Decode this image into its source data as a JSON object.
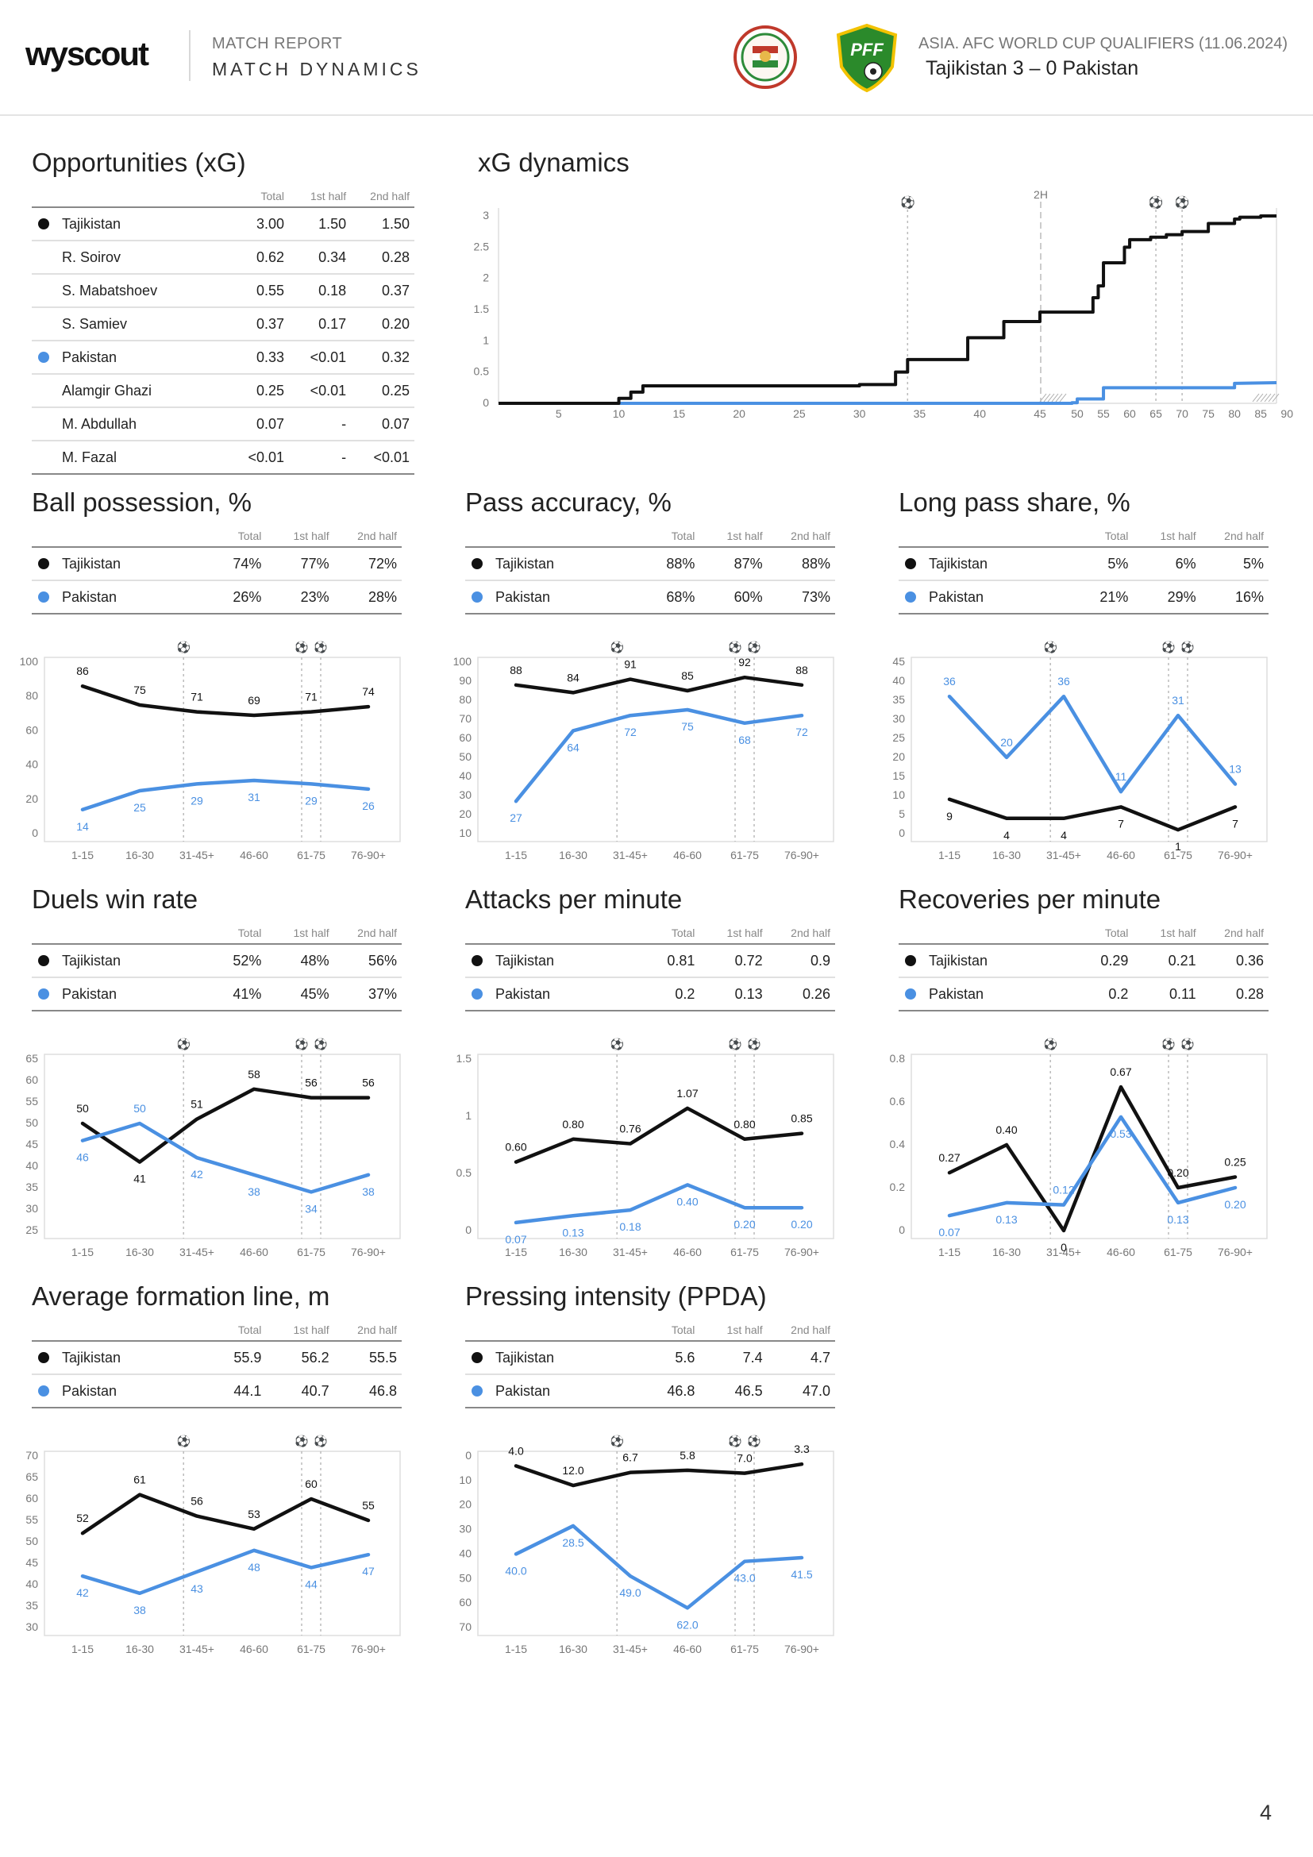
{
  "header": {
    "logo": "wyscout",
    "report_label": "MATCH REPORT",
    "report_title": "MATCH DYNAMICS",
    "competition": "ASIA. AFC WORLD CUP QUALIFIERS (11.06.2024)",
    "match": "Tajikistan 3 – 0 Pakistan",
    "crest_pff_text": "PFF"
  },
  "colors": {
    "home": "#111111",
    "away": "#4a90e2"
  },
  "columns": {
    "total": "Total",
    "first_half": "1st half",
    "second_half": "2nd half"
  },
  "opportunities": {
    "title": "Opportunities (xG)",
    "rows": [
      {
        "name": "Tajikistan",
        "team": "home",
        "total": "3.00",
        "h1": "1.50",
        "h2": "1.50"
      },
      {
        "name": "R. Soirov",
        "team": "",
        "total": "0.62",
        "h1": "0.34",
        "h2": "0.28"
      },
      {
        "name": "S. Mabatshoev",
        "team": "",
        "total": "0.55",
        "h1": "0.18",
        "h2": "0.37"
      },
      {
        "name": "S. Samiev",
        "team": "",
        "total": "0.37",
        "h1": "0.17",
        "h2": "0.20"
      },
      {
        "name": "Pakistan",
        "team": "away",
        "total": "0.33",
        "h1": "<0.01",
        "h2": "0.32"
      },
      {
        "name": "Alamgir Ghazi",
        "team": "",
        "total": "0.25",
        "h1": "<0.01",
        "h2": "0.25"
      },
      {
        "name": "M. Abdullah",
        "team": "",
        "total": "0.07",
        "h1": "-",
        "h2": "0.07"
      },
      {
        "name": "M. Fazal",
        "team": "",
        "total": "<0.01",
        "h1": "-",
        "h2": "<0.01"
      }
    ]
  },
  "xg_dynamics": {
    "title": "xG dynamics",
    "half_label": "2H",
    "goal_icon": "⚽",
    "goal_minutes": [
      34,
      65,
      70
    ],
    "y_ticks": [
      "0",
      "0.5",
      "1",
      "1.5",
      "2",
      "2.5",
      "3"
    ],
    "x_ticks_1h": [
      5,
      10,
      15,
      20,
      25,
      30,
      35,
      40,
      45
    ],
    "x_ticks_2h": [
      50,
      55,
      60,
      65,
      70,
      75,
      80,
      85,
      90
    ],
    "home_steps": [
      [
        0,
        0
      ],
      [
        10,
        0.08
      ],
      [
        11,
        0.18
      ],
      [
        12,
        0.28
      ],
      [
        30,
        0.3
      ],
      [
        33,
        0.5
      ],
      [
        34,
        0.7
      ],
      [
        39,
        1.05
      ],
      [
        42,
        1.31
      ],
      [
        45,
        1.46
      ],
      [
        53,
        1.69
      ],
      [
        54,
        1.88
      ],
      [
        55,
        2.25
      ],
      [
        59,
        2.5
      ],
      [
        60,
        2.62
      ],
      [
        64,
        2.66
      ],
      [
        67,
        2.7
      ],
      [
        70,
        2.75
      ],
      [
        75,
        2.88
      ],
      [
        80,
        2.95
      ],
      [
        81,
        2.98
      ],
      [
        85,
        3.0
      ]
    ],
    "away_steps": [
      [
        0,
        0
      ],
      [
        49,
        0.01
      ],
      [
        50,
        0.07
      ],
      [
        55,
        0.25
      ],
      [
        80,
        0.32
      ]
    ],
    "home_end": 3.0,
    "away_end": 0.33
  },
  "charts": [
    {
      "title": "Ball possession, %",
      "home": {
        "name": "Tajikistan",
        "total": "74%",
        "h1": "77%",
        "h2": "72%"
      },
      "away": {
        "name": "Pakistan",
        "total": "26%",
        "h1": "23%",
        "h2": "28%"
      },
      "chart_data": {
        "type": "line",
        "categories": [
          "1-15",
          "16-30",
          "31-45+",
          "46-60",
          "61-75",
          "76-90+"
        ],
        "ylim": [
          0,
          100
        ],
        "y_ticks": [
          0,
          20,
          40,
          60,
          80,
          100
        ],
        "inverted": false,
        "series": [
          {
            "name": "Tajikistan",
            "team": "home",
            "values": [
              86,
              75,
              71,
              69,
              71,
              74
            ],
            "labels": [
              "86",
              "75",
              "71",
              "69",
              "71",
              "74"
            ]
          },
          {
            "name": "Pakistan",
            "team": "away",
            "values": [
              14,
              25,
              29,
              31,
              29,
              26
            ],
            "labels": [
              "14",
              "25",
              "29",
              "31",
              "29",
              "26"
            ]
          }
        ]
      }
    },
    {
      "title": "Pass accuracy, %",
      "home": {
        "name": "Tajikistan",
        "total": "88%",
        "h1": "87%",
        "h2": "88%"
      },
      "away": {
        "name": "Pakistan",
        "total": "68%",
        "h1": "60%",
        "h2": "73%"
      },
      "chart_data": {
        "type": "line",
        "categories": [
          "1-15",
          "16-30",
          "31-45+",
          "46-60",
          "61-75",
          "76-90+"
        ],
        "ylim": [
          10,
          100
        ],
        "y_ticks": [
          10,
          20,
          30,
          40,
          50,
          60,
          70,
          80,
          90,
          100
        ],
        "inverted": false,
        "series": [
          {
            "name": "Tajikistan",
            "team": "home",
            "values": [
              88,
              84,
              91,
              85,
              92,
              88
            ],
            "labels": [
              "88",
              "84",
              "91",
              "85",
              "92",
              "88"
            ]
          },
          {
            "name": "Pakistan",
            "team": "away",
            "values": [
              27,
              64,
              72,
              75,
              68,
              72
            ],
            "labels": [
              "27",
              "64",
              "72",
              "75",
              "68",
              "72"
            ]
          }
        ]
      }
    },
    {
      "title": "Long pass share, %",
      "home": {
        "name": "Tajikistan",
        "total": "5%",
        "h1": "6%",
        "h2": "5%"
      },
      "away": {
        "name": "Pakistan",
        "total": "21%",
        "h1": "29%",
        "h2": "16%"
      },
      "chart_data": {
        "type": "line",
        "categories": [
          "1-15",
          "16-30",
          "31-45+",
          "46-60",
          "61-75",
          "76-90+"
        ],
        "ylim": [
          0,
          45
        ],
        "y_ticks": [
          0,
          5,
          10,
          15,
          20,
          25,
          30,
          35,
          40,
          45
        ],
        "inverted": false,
        "series": [
          {
            "name": "Tajikistan",
            "team": "home",
            "values": [
              9,
              4,
              4,
              7,
              1,
              7
            ],
            "labels": [
              "9",
              "4",
              "4",
              "7",
              "1",
              "7"
            ]
          },
          {
            "name": "Pakistan",
            "team": "away",
            "values": [
              36,
              20,
              36,
              11,
              31,
              13
            ],
            "labels": [
              "36",
              "20",
              "36",
              "11",
              "31",
              "13"
            ]
          }
        ]
      }
    },
    {
      "title": "Duels win rate",
      "home": {
        "name": "Tajikistan",
        "total": "52%",
        "h1": "48%",
        "h2": "56%"
      },
      "away": {
        "name": "Pakistan",
        "total": "41%",
        "h1": "45%",
        "h2": "37%"
      },
      "chart_data": {
        "type": "line",
        "categories": [
          "1-15",
          "16-30",
          "31-45+",
          "46-60",
          "61-75",
          "76-90+"
        ],
        "ylim": [
          25,
          65
        ],
        "y_ticks": [
          25,
          30,
          35,
          40,
          45,
          50,
          55,
          60,
          65
        ],
        "inverted": false,
        "series": [
          {
            "name": "Tajikistan",
            "team": "home",
            "values": [
              50,
              41,
              51,
              58,
              56,
              56
            ],
            "labels": [
              "50",
              "41",
              "51",
              "58",
              "56",
              "56"
            ]
          },
          {
            "name": "Pakistan",
            "team": "away",
            "values": [
              46,
              50,
              42,
              38,
              34,
              38
            ],
            "labels": [
              "46",
              "50",
              "42",
              "38",
              "34",
              "38"
            ]
          }
        ]
      }
    },
    {
      "title": "Attacks per minute",
      "home": {
        "name": "Tajikistan",
        "total": "0.81",
        "h1": "0.72",
        "h2": "0.9"
      },
      "away": {
        "name": "Pakistan",
        "total": "0.2",
        "h1": "0.13",
        "h2": "0.26"
      },
      "chart_data": {
        "type": "line",
        "categories": [
          "1-15",
          "16-30",
          "31-45+",
          "46-60",
          "61-75",
          "76-90+"
        ],
        "ylim": [
          0,
          1.5
        ],
        "y_ticks": [
          0,
          0.5,
          1,
          1.5
        ],
        "inverted": false,
        "series": [
          {
            "name": "Tajikistan",
            "team": "home",
            "values": [
              0.6,
              0.8,
              0.76,
              1.07,
              0.8,
              0.85
            ],
            "labels": [
              "0.60",
              "0.80",
              "0.76",
              "1.07",
              "0.80",
              "0.85"
            ]
          },
          {
            "name": "Pakistan",
            "team": "away",
            "values": [
              0.07,
              0.13,
              0.18,
              0.4,
              0.2,
              0.2
            ],
            "labels": [
              "0.07",
              "0.13",
              "0.18",
              "0.40",
              "0.20",
              "0.20"
            ]
          }
        ]
      }
    },
    {
      "title": "Recoveries per minute",
      "home": {
        "name": "Tajikistan",
        "total": "0.29",
        "h1": "0.21",
        "h2": "0.36"
      },
      "away": {
        "name": "Pakistan",
        "total": "0.2",
        "h1": "0.11",
        "h2": "0.28"
      },
      "chart_data": {
        "type": "line",
        "categories": [
          "1-15",
          "16-30",
          "31-45+",
          "46-60",
          "61-75",
          "76-90+"
        ],
        "ylim": [
          0,
          0.8
        ],
        "y_ticks": [
          0,
          0.2,
          0.4,
          0.6,
          0.8
        ],
        "inverted": false,
        "series": [
          {
            "name": "Tajikistan",
            "team": "home",
            "values": [
              0.27,
              0.4,
              0,
              0.67,
              0.2,
              0.25
            ],
            "labels": [
              "0.27",
              "0.40",
              "0",
              "0.67",
              "0.20",
              "0.25"
            ]
          },
          {
            "name": "Pakistan",
            "team": "away",
            "values": [
              0.07,
              0.13,
              0.12,
              0.53,
              0.13,
              0.2
            ],
            "labels": [
              "0.07",
              "0.13",
              "0.12",
              "0.53",
              "0.13",
              "0.20"
            ]
          }
        ]
      }
    },
    {
      "title": "Average formation line, m",
      "home": {
        "name": "Tajikistan",
        "total": "55.9",
        "h1": "56.2",
        "h2": "55.5"
      },
      "away": {
        "name": "Pakistan",
        "total": "44.1",
        "h1": "40.7",
        "h2": "46.8"
      },
      "chart_data": {
        "type": "line",
        "categories": [
          "1-15",
          "16-30",
          "31-45+",
          "46-60",
          "61-75",
          "76-90+"
        ],
        "ylim": [
          30,
          70
        ],
        "y_ticks": [
          30,
          35,
          40,
          45,
          50,
          55,
          60,
          65,
          70
        ],
        "inverted": false,
        "series": [
          {
            "name": "Tajikistan",
            "team": "home",
            "values": [
              52,
              61,
              56,
              53,
              60,
              55
            ],
            "labels": [
              "52",
              "61",
              "56",
              "53",
              "60",
              "55"
            ]
          },
          {
            "name": "Pakistan",
            "team": "away",
            "values": [
              42,
              38,
              43,
              48,
              44,
              47
            ],
            "labels": [
              "42",
              "38",
              "43",
              "48",
              "44",
              "47"
            ]
          }
        ]
      }
    },
    {
      "title": "Pressing intensity (PPDA)",
      "home": {
        "name": "Tajikistan",
        "total": "5.6",
        "h1": "7.4",
        "h2": "4.7"
      },
      "away": {
        "name": "Pakistan",
        "total": "46.8",
        "h1": "46.5",
        "h2": "47.0"
      },
      "chart_data": {
        "type": "line",
        "categories": [
          "1-15",
          "16-30",
          "31-45+",
          "46-60",
          "61-75",
          "76-90+"
        ],
        "ylim": [
          0,
          70
        ],
        "y_ticks": [
          0,
          10,
          20,
          30,
          40,
          50,
          60,
          70
        ],
        "inverted": true,
        "series": [
          {
            "name": "Tajikistan",
            "team": "home",
            "values": [
              4.0,
              12.0,
              6.7,
              5.8,
              7.0,
              3.3
            ],
            "labels": [
              "4.0",
              "12.0",
              "6.7",
              "5.8",
              "7.0",
              "3.3"
            ]
          },
          {
            "name": "Pakistan",
            "team": "away",
            "values": [
              40.0,
              28.5,
              49.0,
              62.0,
              43.0,
              41.5
            ],
            "labels": [
              "40.0",
              "28.5",
              "49.0",
              "62.0",
              "43.0",
              "41.5"
            ]
          }
        ]
      }
    }
  ],
  "page_number": "4"
}
